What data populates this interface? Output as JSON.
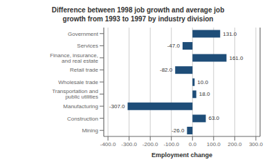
{
  "chart_data": {
    "type": "bar",
    "orientation": "horizontal",
    "title": "Difference between 1998 job growth and average job\ngrowth from 1993 to 1997 by industry division",
    "x_label": "Employment change",
    "categories": [
      "Government",
      "Services",
      "Finance, insurance, and real estate",
      "Retail trade",
      "Wholesale trade",
      "Transportation and public utilities",
      "Manufacturing",
      "Construction",
      "Mining"
    ],
    "values": [
      131.0,
      -47.0,
      161.0,
      -82.0,
      10.0,
      18.0,
      -307.0,
      63.0,
      -26.0
    ],
    "value_labels": [
      "131.0",
      "-47.0",
      "161.0",
      "-82.0",
      "10.0",
      "18.0",
      "-307.0",
      "63.0",
      "-26.0"
    ],
    "data_labels": true,
    "color": "#1e4d78",
    "xlim": [
      -420,
      320
    ],
    "xticks": [
      {
        "value": -400,
        "label": "-400.0"
      },
      {
        "value": -300,
        "label": "-300.0"
      },
      {
        "value": -200,
        "label": "-200.0"
      },
      {
        "value": -100,
        "label": "-100.0"
      },
      {
        "value": 0,
        "label": "0.0"
      },
      {
        "value": 100,
        "label": "100.0"
      },
      {
        "value": 200,
        "label": "200.0"
      },
      {
        "value": 300,
        "label": "300.0"
      }
    ],
    "grid": true
  }
}
